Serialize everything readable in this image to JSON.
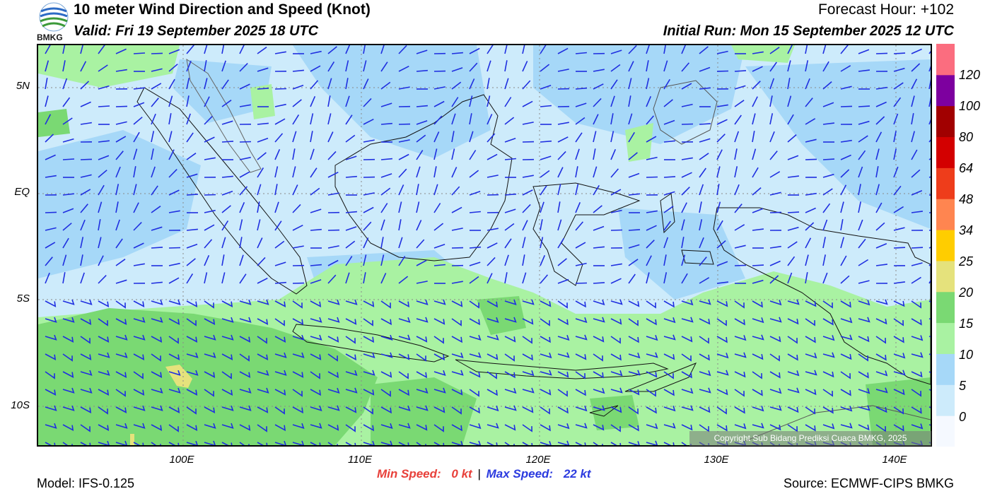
{
  "header": {
    "logo_text": "BMKG",
    "title": "10 meter Wind Direction and Speed (Knot)",
    "valid": "Valid: Fri 19 September 2025 18 UTC",
    "forecast_hour": "Forecast Hour: +102",
    "initial_run": "Initial Run: Mon 15 September 2025 12 UTC"
  },
  "map": {
    "lat_labels": [
      "5N",
      "EQ",
      "5S",
      "10S"
    ],
    "lon_labels": [
      "100E",
      "110E",
      "120E",
      "130E",
      "140E"
    ],
    "copyright": "Copyright Sub Bidang Prediksi Cuaca BMKG, 2025"
  },
  "colorbar": {
    "labels": [
      "120",
      "100",
      "80",
      "64",
      "48",
      "34",
      "25",
      "20",
      "15",
      "10",
      "5",
      "0"
    ],
    "colors": [
      "#f5f9ff",
      "#cdebfb",
      "#a6d8f8",
      "#a9f2a2",
      "#7ad973",
      "#e5e27c",
      "#ffcd00",
      "#ff8550",
      "#ee3d1b",
      "#d30000",
      "#a10000",
      "#7d009f",
      "#fb6d7f"
    ]
  },
  "footer": {
    "min_label": "Min Speed:",
    "min_value": "0 kt",
    "separator": "|",
    "max_label": "Max Speed:",
    "max_value": "22 kt",
    "model": "Model: IFS-0.125",
    "source": "Source: ECMWF-CIPS BMKG"
  }
}
